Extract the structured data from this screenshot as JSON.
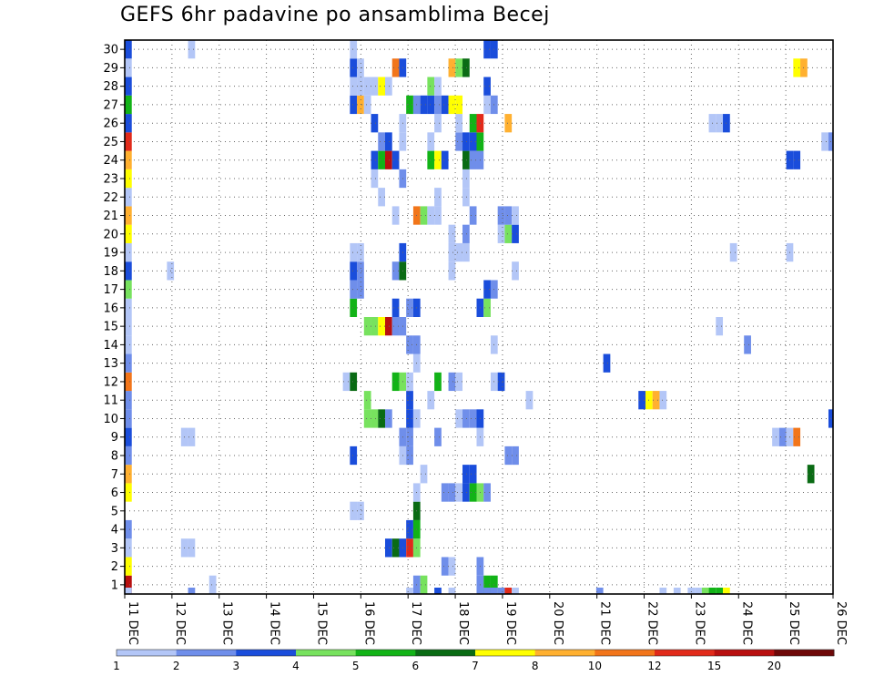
{
  "chart_data": {
    "type": "heatmap",
    "title": "GEFS 6hr padavine po ansamblima Becej",
    "xlabel": "",
    "ylabel": "",
    "x_tick_labels": [
      "11 DEC",
      "12 DEC",
      "13 DEC",
      "14 DEC",
      "15 DEC",
      "16 DEC",
      "17 DEC",
      "18 DEC",
      "19 DEC",
      "20 DEC",
      "21 DEC",
      "22 DEC",
      "23 DEC",
      "24 DEC",
      "25 DEC",
      "26 DEC"
    ],
    "y_tick_labels": [
      "1",
      "2",
      "3",
      "4",
      "5",
      "6",
      "7",
      "8",
      "9",
      "10",
      "11",
      "12",
      "13",
      "14",
      "15",
      "16",
      "17",
      "18",
      "19",
      "20",
      "21",
      "22",
      "23",
      "24",
      "25",
      "26",
      "27",
      "28",
      "29",
      "30"
    ],
    "grid": true,
    "legend_position": "bottom",
    "color_bins": [
      {
        "min": 1,
        "max": 2,
        "color": "#b3c6f7"
      },
      {
        "min": 2,
        "max": 3,
        "color": "#6f8eea"
      },
      {
        "min": 3,
        "max": 4,
        "color": "#1a4ddb"
      },
      {
        "min": 4,
        "max": 5,
        "color": "#77e25e"
      },
      {
        "min": 5,
        "max": 6,
        "color": "#12b317"
      },
      {
        "min": 6,
        "max": 7,
        "color": "#0a6b14"
      },
      {
        "min": 7,
        "max": 8,
        "color": "#ffff00"
      },
      {
        "min": 8,
        "max": 10,
        "color": "#ffb030"
      },
      {
        "min": 10,
        "max": 12,
        "color": "#f2751a"
      },
      {
        "min": 12,
        "max": 15,
        "color": "#e12a1a"
      },
      {
        "min": 15,
        "max": 20,
        "color": "#b81010"
      },
      {
        "min": 20,
        "max": 999,
        "color": "#6e0808"
      }
    ],
    "legend_labels": [
      "1",
      "2",
      "3",
      "4",
      "5",
      "6",
      "7",
      "8",
      "10",
      "12",
      "15",
      "20"
    ],
    "cells_note": "rows: [member, [[step, value], ...]]",
    "rows": [
      [
        1,
        [
          [
            0,
            18
          ],
          [
            12,
            1.5
          ],
          [
            41,
            2.5
          ],
          [
            42,
            4.5
          ],
          [
            50,
            2.5
          ],
          [
            51,
            5.5
          ],
          [
            52,
            5.5
          ]
        ]
      ],
      [
        2,
        [
          [
            0,
            7.5
          ],
          [
            45,
            2
          ],
          [
            46,
            1.5
          ],
          [
            50,
            2.5
          ]
        ]
      ],
      [
        3,
        [
          [
            0,
            1.5
          ],
          [
            8,
            1.5
          ],
          [
            9,
            1.5
          ],
          [
            37,
            3.5
          ],
          [
            38,
            6.5
          ],
          [
            39,
            3.5
          ],
          [
            40,
            13
          ],
          [
            41,
            4.5
          ]
        ]
      ],
      [
        4,
        [
          [
            0,
            2.5
          ],
          [
            40,
            3.5
          ],
          [
            41,
            5.5
          ]
        ]
      ],
      [
        5,
        [
          [
            32,
            1.5
          ],
          [
            33,
            1.5
          ],
          [
            41,
            6.5
          ]
        ]
      ],
      [
        6,
        [
          [
            0,
            7.5
          ],
          [
            41,
            1.5
          ],
          [
            45,
            2.5
          ],
          [
            46,
            2.5
          ],
          [
            47,
            1.5
          ],
          [
            48,
            3.5
          ],
          [
            49,
            5.5
          ],
          [
            50,
            4.5
          ],
          [
            51,
            2.5
          ]
        ]
      ],
      [
        7,
        [
          [
            0,
            9
          ],
          [
            42,
            1.5
          ],
          [
            48,
            3.5
          ],
          [
            49,
            3.5
          ],
          [
            97,
            6.5
          ]
        ]
      ],
      [
        8,
        [
          [
            0,
            2.5
          ],
          [
            32,
            3.5
          ],
          [
            39,
            1.5
          ],
          [
            40,
            2.5
          ],
          [
            54,
            2.5
          ],
          [
            55,
            2.5
          ]
        ]
      ],
      [
        9,
        [
          [
            0,
            3.5
          ],
          [
            8,
            1.5
          ],
          [
            9,
            1.5
          ],
          [
            39,
            2.5
          ],
          [
            40,
            2.5
          ],
          [
            44,
            2.5
          ],
          [
            50,
            1.5
          ],
          [
            92,
            1.5
          ],
          [
            93,
            2.5
          ],
          [
            94,
            1.5
          ],
          [
            95,
            11
          ]
        ]
      ],
      [
        10,
        [
          [
            0,
            2.5
          ],
          [
            34,
            4.5
          ],
          [
            35,
            4.5
          ],
          [
            36,
            6.5
          ],
          [
            37,
            2.5
          ],
          [
            40,
            3.5
          ],
          [
            41,
            1.5
          ],
          [
            47,
            1.5
          ],
          [
            48,
            2.5
          ],
          [
            49,
            2.5
          ],
          [
            50,
            3.5
          ],
          [
            100,
            3.5
          ]
        ]
      ],
      [
        11,
        [
          [
            0,
            2.5
          ],
          [
            34,
            4.5
          ],
          [
            40,
            3.5
          ],
          [
            43,
            1.5
          ],
          [
            57,
            1.5
          ],
          [
            73,
            3.5
          ],
          [
            74,
            7.5
          ],
          [
            75,
            9
          ],
          [
            76,
            1.5
          ]
        ]
      ],
      [
        12,
        [
          [
            0,
            11
          ],
          [
            31,
            1.5
          ],
          [
            32,
            6.5
          ],
          [
            38,
            5.5
          ],
          [
            39,
            4.5
          ],
          [
            40,
            1.5
          ],
          [
            44,
            5.5
          ],
          [
            46,
            2.5
          ],
          [
            47,
            1.5
          ],
          [
            52,
            1.5
          ],
          [
            53,
            3.5
          ]
        ]
      ],
      [
        13,
        [
          [
            0,
            2.5
          ],
          [
            41,
            1.5
          ],
          [
            68,
            3.5
          ]
        ]
      ],
      [
        14,
        [
          [
            0,
            1.5
          ],
          [
            40,
            2.5
          ],
          [
            41,
            2.5
          ],
          [
            52,
            1.5
          ],
          [
            88,
            2.5
          ]
        ]
      ],
      [
        15,
        [
          [
            0,
            1.5
          ],
          [
            34,
            4.5
          ],
          [
            35,
            4.5
          ],
          [
            36,
            7.5
          ],
          [
            37,
            18
          ],
          [
            38,
            2.5
          ],
          [
            39,
            2.5
          ],
          [
            84,
            1.5
          ]
        ]
      ],
      [
        16,
        [
          [
            0,
            1.5
          ],
          [
            32,
            5.5
          ],
          [
            38,
            3.5
          ],
          [
            40,
            2.5
          ],
          [
            41,
            3.5
          ],
          [
            50,
            3.5
          ],
          [
            51,
            4.5
          ]
        ]
      ],
      [
        17,
        [
          [
            0,
            4.5
          ],
          [
            32,
            2.5
          ],
          [
            33,
            2.5
          ],
          [
            51,
            3.5
          ],
          [
            52,
            2.5
          ]
        ]
      ],
      [
        18,
        [
          [
            0,
            3.5
          ],
          [
            6,
            1.5
          ],
          [
            32,
            3.5
          ],
          [
            33,
            2.5
          ],
          [
            38,
            2.5
          ],
          [
            39,
            6.5
          ],
          [
            46,
            1.5
          ],
          [
            55,
            1.5
          ]
        ]
      ],
      [
        19,
        [
          [
            0,
            1.5
          ],
          [
            32,
            1.5
          ],
          [
            33,
            1.5
          ],
          [
            39,
            3.5
          ],
          [
            46,
            1.5
          ],
          [
            47,
            1.5
          ],
          [
            48,
            1.5
          ],
          [
            86,
            1.5
          ],
          [
            94,
            1.5
          ]
        ]
      ],
      [
        20,
        [
          [
            0,
            7.5
          ],
          [
            46,
            1.5
          ],
          [
            48,
            2.5
          ],
          [
            53,
            1.5
          ],
          [
            54,
            4.5
          ],
          [
            55,
            3.5
          ]
        ]
      ],
      [
        21,
        [
          [
            0,
            9
          ],
          [
            38,
            1.5
          ],
          [
            41,
            11
          ],
          [
            42,
            4.5
          ],
          [
            43,
            1.5
          ],
          [
            44,
            1.5
          ],
          [
            49,
            2.5
          ],
          [
            53,
            2.5
          ],
          [
            54,
            2.5
          ],
          [
            55,
            1.5
          ]
        ]
      ],
      [
        22,
        [
          [
            0,
            1.5
          ],
          [
            36,
            1.5
          ],
          [
            44,
            1.5
          ],
          [
            48,
            1.5
          ]
        ]
      ],
      [
        23,
        [
          [
            0,
            7.5
          ],
          [
            35,
            1.5
          ],
          [
            39,
            2.5
          ],
          [
            48,
            1.5
          ]
        ]
      ],
      [
        24,
        [
          [
            0,
            9
          ],
          [
            35,
            3.5
          ],
          [
            36,
            5.5
          ],
          [
            37,
            18
          ],
          [
            38,
            3.5
          ],
          [
            43,
            5.5
          ],
          [
            44,
            7.5
          ],
          [
            45,
            3.5
          ],
          [
            48,
            6.5
          ],
          [
            49,
            2.5
          ],
          [
            50,
            2.5
          ],
          [
            94,
            3.5
          ],
          [
            95,
            3.5
          ]
        ]
      ],
      [
        25,
        [
          [
            0,
            13
          ],
          [
            36,
            2.5
          ],
          [
            37,
            3.5
          ],
          [
            39,
            1.5
          ],
          [
            43,
            1.5
          ],
          [
            47,
            2.5
          ],
          [
            48,
            3.5
          ],
          [
            49,
            3.5
          ],
          [
            50,
            5.5
          ],
          [
            99,
            1.5
          ],
          [
            100,
            2.5
          ]
        ]
      ],
      [
        26,
        [
          [
            0,
            3.5
          ],
          [
            35,
            3.5
          ],
          [
            39,
            1.5
          ],
          [
            44,
            1.5
          ],
          [
            47,
            1.5
          ],
          [
            49,
            5.5
          ],
          [
            50,
            13
          ],
          [
            54,
            9
          ],
          [
            83,
            1.5
          ],
          [
            84,
            1.5
          ],
          [
            85,
            3.5
          ]
        ]
      ],
      [
        27,
        [
          [
            0,
            5.5
          ],
          [
            32,
            3.5
          ],
          [
            33,
            9
          ],
          [
            34,
            1.5
          ],
          [
            40,
            5.5
          ],
          [
            41,
            2.5
          ],
          [
            42,
            3.5
          ],
          [
            43,
            3.5
          ],
          [
            44,
            2.5
          ],
          [
            45,
            3.5
          ],
          [
            46,
            7.5
          ],
          [
            47,
            7.5
          ],
          [
            51,
            1.5
          ],
          [
            52,
            2.5
          ]
        ]
      ],
      [
        28,
        [
          [
            0,
            3.5
          ],
          [
            32,
            1.5
          ],
          [
            33,
            1.5
          ],
          [
            34,
            1.5
          ],
          [
            35,
            1.5
          ],
          [
            36,
            7.5
          ],
          [
            37,
            1.5
          ],
          [
            43,
            4.5
          ],
          [
            44,
            1.5
          ],
          [
            51,
            3.5
          ]
        ]
      ],
      [
        29,
        [
          [
            0,
            1.5
          ],
          [
            32,
            3.5
          ],
          [
            33,
            1.5
          ],
          [
            38,
            11
          ],
          [
            39,
            3.5
          ],
          [
            46,
            9
          ],
          [
            47,
            4.5
          ],
          [
            48,
            6.5
          ],
          [
            95,
            7.5
          ],
          [
            96,
            9
          ]
        ]
      ],
      [
        30,
        [
          [
            0,
            3.5
          ],
          [
            9,
            1.5
          ],
          [
            32,
            1.5
          ],
          [
            51,
            3.5
          ],
          [
            52,
            3.5
          ]
        ]
      ],
      [
        0,
        [
          [
            0,
            1.5
          ],
          [
            9,
            2.5
          ],
          [
            40,
            1.5
          ],
          [
            44,
            3.5
          ],
          [
            46,
            1.5
          ],
          [
            50,
            2.5
          ],
          [
            51,
            2.5
          ],
          [
            52,
            2.5
          ],
          [
            53,
            2.5
          ],
          [
            54,
            13
          ],
          [
            55,
            1.5
          ],
          [
            67,
            2.5
          ],
          [
            76,
            1.5
          ],
          [
            78,
            1.5
          ],
          [
            80,
            1.5
          ],
          [
            81,
            1.5
          ],
          [
            82,
            4.5
          ],
          [
            83,
            5.5
          ],
          [
            84,
            5.5
          ],
          [
            85,
            7.5
          ]
        ]
      ]
    ]
  }
}
